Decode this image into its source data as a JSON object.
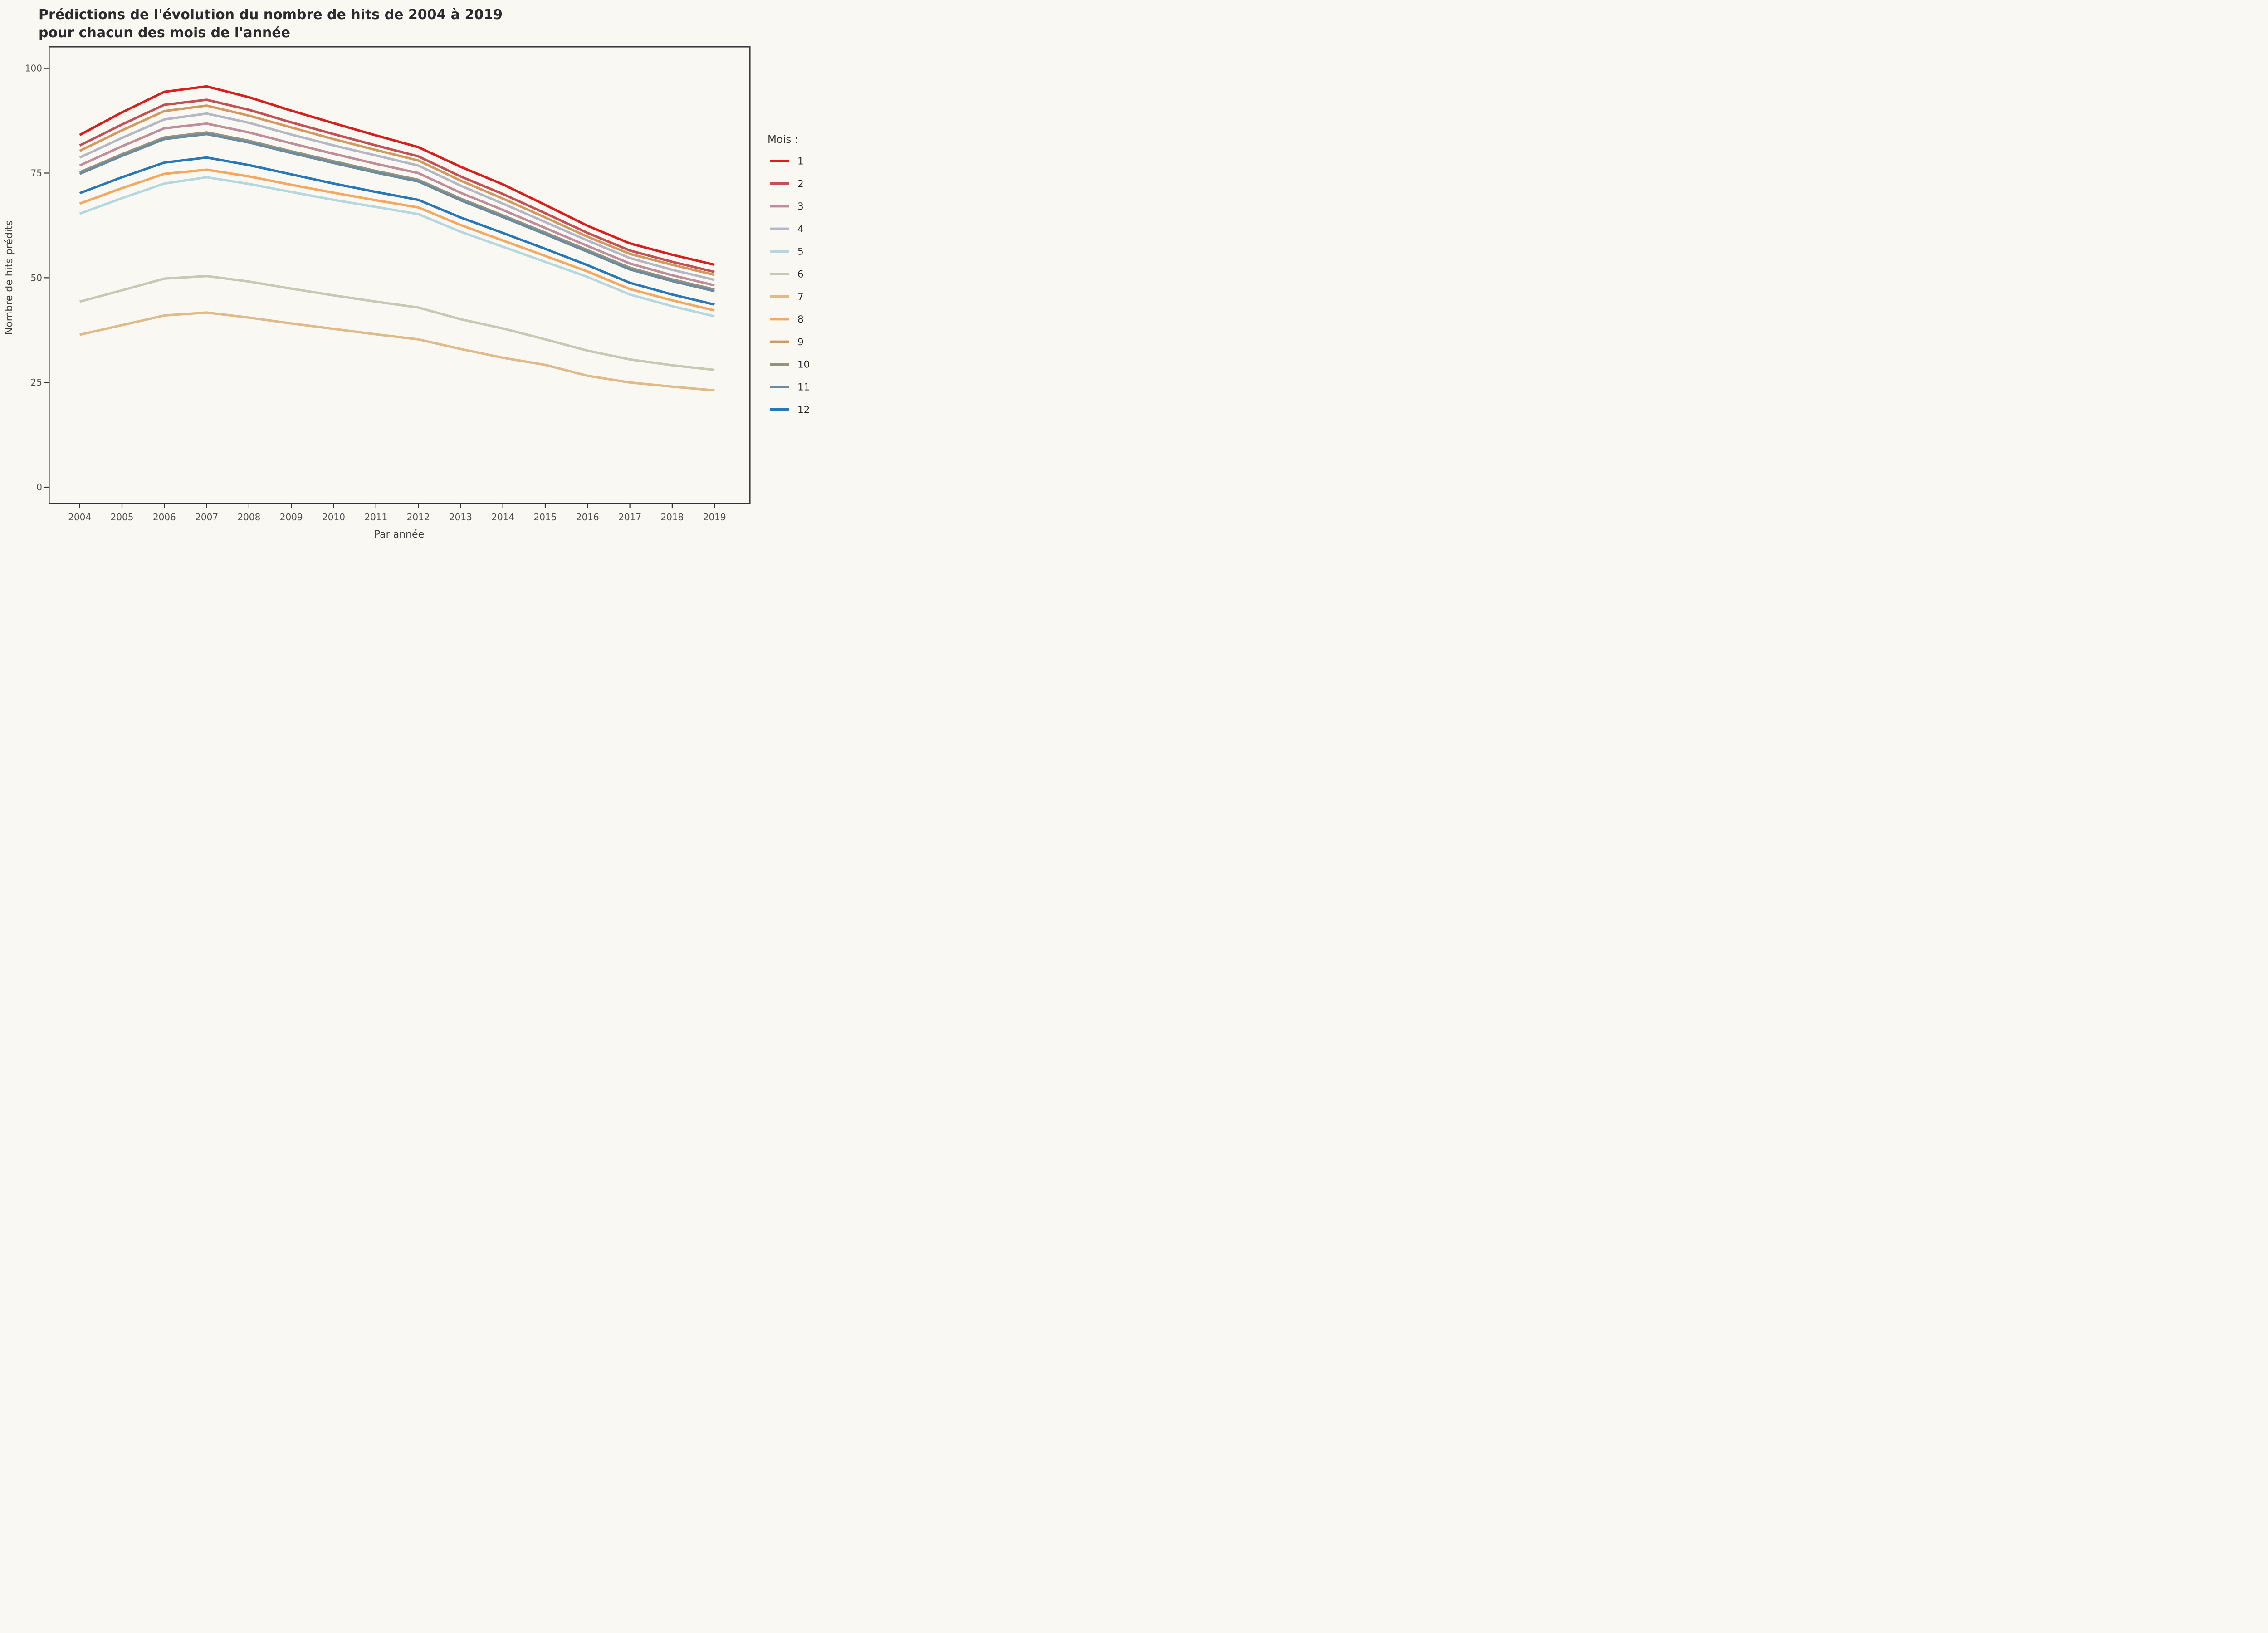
{
  "chart_data": {
    "type": "line",
    "title_line1": "Prédictions de l'évolution du nombre de hits de 2004 à 2019",
    "title_line2": "pour chacun des mois de l'année",
    "xlabel": "Par année",
    "ylabel": "Nombre de hits prédits",
    "legend_title": "Mois :",
    "x": [
      2004,
      2005,
      2006,
      2007,
      2008,
      2009,
      2010,
      2011,
      2012,
      2013,
      2014,
      2015,
      2016,
      2017,
      2018,
      2019
    ],
    "yticks": [
      0,
      25,
      50,
      75,
      100
    ],
    "ylim": [
      -4,
      105
    ],
    "xlim": [
      2003.3,
      2019.95
    ],
    "grid": "off",
    "legend_position": "right",
    "series": [
      {
        "name": "1",
        "color": "#d7201d",
        "values": [
          84.1,
          89.5,
          94.4,
          95.7,
          93.1,
          89.9,
          86.9,
          84.0,
          81.2,
          76.5,
          72.3,
          67.4,
          62.4,
          58.2,
          55.5,
          53.1
        ]
      },
      {
        "name": "2",
        "color": "#c44f54",
        "values": [
          81.6,
          86.6,
          91.3,
          92.5,
          90.1,
          87.1,
          84.3,
          81.6,
          79.0,
          74.2,
          70.0,
          65.4,
          60.7,
          56.5,
          53.8,
          51.4
        ]
      },
      {
        "name": "3",
        "color": "#c08d9c",
        "values": [
          76.8,
          81.4,
          85.7,
          86.8,
          84.7,
          82.1,
          79.6,
          77.2,
          75.0,
          70.3,
          66.2,
          61.9,
          57.6,
          53.4,
          50.6,
          48.2
        ]
      },
      {
        "name": "4",
        "color": "#b3b7c6",
        "values": [
          78.7,
          83.4,
          87.8,
          89.2,
          87.0,
          84.2,
          81.6,
          79.2,
          76.8,
          72.0,
          67.7,
          63.3,
          58.9,
          54.7,
          51.9,
          49.5
        ]
      },
      {
        "name": "5",
        "color": "#b5d7e0",
        "values": [
          65.3,
          69.0,
          72.5,
          74.0,
          72.4,
          70.5,
          68.6,
          66.9,
          65.2,
          61.0,
          57.4,
          53.8,
          50.2,
          46.0,
          43.2,
          40.8
        ]
      },
      {
        "name": "6",
        "color": "#c6c9b4",
        "values": [
          44.3,
          47.0,
          49.8,
          50.4,
          49.1,
          47.4,
          45.8,
          44.3,
          42.9,
          40.1,
          37.9,
          35.3,
          32.6,
          30.5,
          29.1,
          28.0
        ]
      },
      {
        "name": "7",
        "color": "#e0ba88",
        "values": [
          36.4,
          38.7,
          41.0,
          41.7,
          40.5,
          39.1,
          37.8,
          36.5,
          35.3,
          33.0,
          30.9,
          29.2,
          26.6,
          25.0,
          24.0,
          23.1
        ]
      },
      {
        "name": "8",
        "color": "#f5a860",
        "values": [
          67.7,
          71.4,
          74.8,
          75.8,
          74.2,
          72.2,
          70.3,
          68.5,
          66.8,
          62.6,
          58.9,
          55.2,
          51.5,
          47.3,
          44.6,
          42.2
        ]
      },
      {
        "name": "9",
        "color": "#d19a60",
        "values": [
          80.3,
          85.2,
          89.8,
          91.1,
          88.7,
          85.9,
          83.1,
          80.5,
          78.0,
          73.2,
          68.9,
          64.4,
          59.8,
          55.7,
          53.1,
          50.7
        ]
      },
      {
        "name": "10",
        "color": "#97917f",
        "values": [
          75.2,
          79.5,
          83.5,
          84.7,
          82.7,
          80.2,
          77.8,
          75.5,
          73.4,
          68.9,
          64.9,
          60.8,
          56.6,
          52.4,
          49.6,
          47.2
        ]
      },
      {
        "name": "11",
        "color": "#6b8ba1",
        "values": [
          74.8,
          79.1,
          83.1,
          84.3,
          82.3,
          79.8,
          77.4,
          75.1,
          73.0,
          68.5,
          64.5,
          60.4,
          56.2,
          52.0,
          49.2,
          46.8
        ]
      },
      {
        "name": "12",
        "color": "#2878b8",
        "values": [
          70.2,
          74.0,
          77.5,
          78.7,
          76.9,
          74.7,
          72.5,
          70.5,
          68.6,
          64.4,
          60.7,
          56.9,
          53.0,
          48.8,
          46.0,
          43.6
        ]
      }
    ]
  },
  "colors": {
    "background": "#faf8f2",
    "axis": "#333333",
    "tick_text": "#4d4d4d",
    "title_text": "#2b2b2b"
  }
}
